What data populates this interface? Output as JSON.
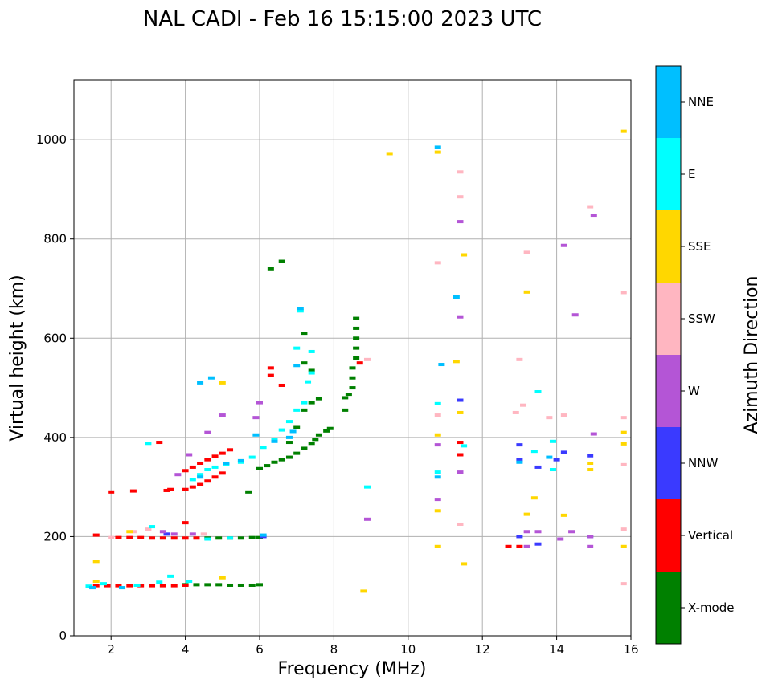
{
  "chart_data": {
    "type": "scatter",
    "title": "NAL CADI - Feb 16 15:15:00 2023 UTC",
    "xlabel": "Frequency (MHz)",
    "ylabel": "Virtual height (km)",
    "xlim": [
      1,
      16
    ],
    "ylim": [
      0,
      1120
    ],
    "xticks": [
      2,
      4,
      6,
      8,
      10,
      12,
      14,
      16
    ],
    "yticks": [
      0,
      200,
      400,
      600,
      800,
      1000
    ],
    "grid": true,
    "colorbar": {
      "label": "Azimuth Direction",
      "categories": [
        {
          "name": "X-mode",
          "color": "#008000"
        },
        {
          "name": "Vertical",
          "color": "#ff0000"
        },
        {
          "name": "NNW",
          "color": "#3a3aff"
        },
        {
          "name": "W",
          "color": "#b455d6"
        },
        {
          "name": "SSW",
          "color": "#ffb6c1"
        },
        {
          "name": "SSE",
          "color": "#ffd700"
        },
        {
          "name": "E",
          "color": "#00ffff"
        },
        {
          "name": "NNE",
          "color": "#00bfff"
        }
      ]
    },
    "series": [
      {
        "name": "X-mode",
        "color": "#008000",
        "points": [
          [
            4.0,
            103
          ],
          [
            4.3,
            103
          ],
          [
            4.6,
            103
          ],
          [
            4.9,
            103
          ],
          [
            5.2,
            102
          ],
          [
            5.5,
            102
          ],
          [
            5.8,
            102
          ],
          [
            6.0,
            103
          ],
          [
            4.6,
            197
          ],
          [
            4.9,
            197
          ],
          [
            5.2,
            197
          ],
          [
            5.5,
            197
          ],
          [
            5.8,
            198
          ],
          [
            6.0,
            198
          ],
          [
            6.0,
            337
          ],
          [
            6.2,
            343
          ],
          [
            6.4,
            350
          ],
          [
            6.6,
            355
          ],
          [
            6.8,
            360
          ],
          [
            7.0,
            368
          ],
          [
            7.2,
            378
          ],
          [
            7.4,
            388
          ],
          [
            7.5,
            396
          ],
          [
            7.6,
            405
          ],
          [
            7.8,
            413
          ],
          [
            7.9,
            418
          ],
          [
            6.8,
            390
          ],
          [
            7.0,
            420
          ],
          [
            7.2,
            455
          ],
          [
            7.4,
            470
          ],
          [
            7.6,
            478
          ],
          [
            7.2,
            550
          ],
          [
            7.4,
            535
          ],
          [
            7.2,
            610
          ],
          [
            6.3,
            740
          ],
          [
            6.6,
            755
          ],
          [
            8.3,
            480
          ],
          [
            8.4,
            487
          ],
          [
            8.5,
            500
          ],
          [
            8.5,
            520
          ],
          [
            8.5,
            540
          ],
          [
            8.6,
            560
          ],
          [
            8.6,
            580
          ],
          [
            8.6,
            600
          ],
          [
            8.6,
            620
          ],
          [
            8.6,
            640
          ],
          [
            8.3,
            455
          ],
          [
            5.7,
            290
          ]
        ]
      },
      {
        "name": "Vertical",
        "color": "#ff0000",
        "points": [
          [
            1.6,
            101
          ],
          [
            1.9,
            101
          ],
          [
            2.2,
            101
          ],
          [
            2.5,
            101
          ],
          [
            2.8,
            101
          ],
          [
            3.1,
            101
          ],
          [
            3.4,
            101
          ],
          [
            3.7,
            101
          ],
          [
            4.0,
            102
          ],
          [
            1.6,
            203
          ],
          [
            2.2,
            198
          ],
          [
            2.5,
            198
          ],
          [
            2.8,
            198
          ],
          [
            3.1,
            197
          ],
          [
            3.4,
            197
          ],
          [
            3.7,
            197
          ],
          [
            4.0,
            197
          ],
          [
            4.3,
            197
          ],
          [
            4.0,
            295
          ],
          [
            4.2,
            300
          ],
          [
            4.4,
            305
          ],
          [
            4.6,
            312
          ],
          [
            4.8,
            320
          ],
          [
            5.0,
            328
          ],
          [
            4.0,
            333
          ],
          [
            4.2,
            340
          ],
          [
            4.4,
            348
          ],
          [
            4.6,
            355
          ],
          [
            4.8,
            362
          ],
          [
            5.0,
            368
          ],
          [
            5.2,
            375
          ],
          [
            6.3,
            540
          ],
          [
            6.3,
            525
          ],
          [
            6.6,
            505
          ],
          [
            2.0,
            290
          ],
          [
            2.6,
            292
          ],
          [
            3.5,
            293
          ],
          [
            3.3,
            390
          ],
          [
            3.6,
            295
          ],
          [
            8.7,
            550
          ],
          [
            11.4,
            390
          ],
          [
            11.4,
            365
          ],
          [
            12.7,
            180
          ],
          [
            13.0,
            180
          ],
          [
            4.0,
            228
          ]
        ]
      },
      {
        "name": "NNW",
        "color": "#3a3aff",
        "points": [
          [
            13.0,
            385
          ],
          [
            13.0,
            355
          ],
          [
            13.5,
            340
          ],
          [
            13.0,
            200
          ],
          [
            13.5,
            185
          ],
          [
            14.0,
            355
          ],
          [
            14.2,
            370
          ],
          [
            14.9,
            363
          ],
          [
            14.9,
            200
          ],
          [
            11.4,
            475
          ],
          [
            3.5,
            205
          ],
          [
            6.1,
            200
          ]
        ]
      },
      {
        "name": "W",
        "color": "#b455d6",
        "points": [
          [
            3.4,
            210
          ],
          [
            3.7,
            205
          ],
          [
            4.2,
            205
          ],
          [
            4.6,
            410
          ],
          [
            5.0,
            445
          ],
          [
            5.9,
            440
          ],
          [
            6.0,
            470
          ],
          [
            8.9,
            235
          ],
          [
            10.8,
            385
          ],
          [
            10.8,
            275
          ],
          [
            11.4,
            330
          ],
          [
            11.4,
            835
          ],
          [
            13.2,
            210
          ],
          [
            13.5,
            210
          ],
          [
            14.1,
            195
          ],
          [
            14.4,
            210
          ],
          [
            14.9,
            200
          ],
          [
            14.9,
            180
          ],
          [
            15.0,
            407
          ],
          [
            15.0,
            848
          ],
          [
            14.2,
            787
          ],
          [
            14.5,
            647
          ],
          [
            3.8,
            325
          ],
          [
            4.1,
            365
          ],
          [
            11.4,
            643
          ],
          [
            13.2,
            180
          ]
        ]
      },
      {
        "name": "SSW",
        "color": "#ffb6c1",
        "points": [
          [
            2.0,
            198
          ],
          [
            2.6,
            210
          ],
          [
            3.0,
            215
          ],
          [
            4.5,
            205
          ],
          [
            10.8,
            752
          ],
          [
            10.8,
            445
          ],
          [
            11.4,
            935
          ],
          [
            11.4,
            885
          ],
          [
            11.4,
            225
          ],
          [
            12.9,
            450
          ],
          [
            13.1,
            465
          ],
          [
            13.0,
            557
          ],
          [
            13.2,
            773
          ],
          [
            13.8,
            440
          ],
          [
            14.2,
            445
          ],
          [
            14.9,
            865
          ],
          [
            15.8,
            692
          ],
          [
            15.8,
            440
          ],
          [
            15.8,
            345
          ],
          [
            15.8,
            215
          ],
          [
            15.8,
            105
          ],
          [
            8.9,
            557
          ]
        ]
      },
      {
        "name": "SSE",
        "color": "#ffd700",
        "points": [
          [
            1.6,
            110
          ],
          [
            1.6,
            150
          ],
          [
            2.5,
            210
          ],
          [
            5.0,
            117
          ],
          [
            8.8,
            90
          ],
          [
            9.5,
            972
          ],
          [
            10.8,
            975
          ],
          [
            10.8,
            405
          ],
          [
            10.8,
            252
          ],
          [
            10.8,
            180
          ],
          [
            11.4,
            450
          ],
          [
            11.3,
            553
          ],
          [
            11.5,
            768
          ],
          [
            11.5,
            145
          ],
          [
            13.2,
            693
          ],
          [
            13.4,
            278
          ],
          [
            14.2,
            243
          ],
          [
            14.9,
            348
          ],
          [
            15.8,
            410
          ],
          [
            15.8,
            387
          ],
          [
            15.8,
            180
          ],
          [
            15.8,
            1017
          ],
          [
            13.2,
            245
          ],
          [
            14.9,
            335
          ],
          [
            5.0,
            510
          ]
        ]
      },
      {
        "name": "E",
        "color": "#00ffff",
        "points": [
          [
            1.4,
            100
          ],
          [
            1.8,
            105
          ],
          [
            2.7,
            102
          ],
          [
            3.3,
            108
          ],
          [
            3.6,
            120
          ],
          [
            4.1,
            110
          ],
          [
            4.6,
            195
          ],
          [
            5.2,
            197
          ],
          [
            4.2,
            315
          ],
          [
            4.4,
            325
          ],
          [
            4.6,
            335
          ],
          [
            4.8,
            340
          ],
          [
            5.1,
            345
          ],
          [
            5.5,
            350
          ],
          [
            5.8,
            360
          ],
          [
            6.1,
            380
          ],
          [
            6.4,
            395
          ],
          [
            6.6,
            415
          ],
          [
            6.8,
            432
          ],
          [
            7.0,
            455
          ],
          [
            7.2,
            470
          ],
          [
            7.3,
            512
          ],
          [
            7.4,
            530
          ],
          [
            7.1,
            655
          ],
          [
            7.0,
            580
          ],
          [
            7.4,
            573
          ],
          [
            3.1,
            220
          ],
          [
            8.9,
            300
          ],
          [
            10.8,
            330
          ],
          [
            10.8,
            468
          ],
          [
            13.5,
            492
          ],
          [
            13.4,
            372
          ],
          [
            13.9,
            335
          ],
          [
            13.9,
            392
          ],
          [
            3.0,
            388
          ],
          [
            11.5,
            383
          ]
        ]
      },
      {
        "name": "NNE",
        "color": "#00bfff",
        "points": [
          [
            1.5,
            97
          ],
          [
            2.3,
            97
          ],
          [
            4.4,
            320
          ],
          [
            5.1,
            348
          ],
          [
            5.5,
            353
          ],
          [
            6.1,
            203
          ],
          [
            6.4,
            392
          ],
          [
            6.9,
            412
          ],
          [
            7.0,
            545
          ],
          [
            7.1,
            660
          ],
          [
            6.8,
            400
          ],
          [
            10.9,
            547
          ],
          [
            10.8,
            985
          ],
          [
            11.3,
            683
          ],
          [
            10.8,
            320
          ],
          [
            13.0,
            350
          ],
          [
            13.8,
            360
          ],
          [
            4.7,
            520
          ],
          [
            4.4,
            510
          ],
          [
            5.9,
            405
          ]
        ]
      }
    ]
  }
}
